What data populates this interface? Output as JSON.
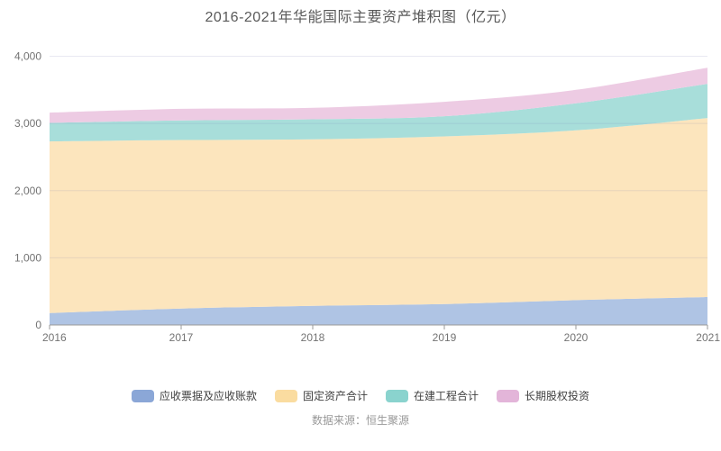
{
  "title": "2016-2021年华能国际主要资产堆积图（亿元）",
  "source": "数据来源：恒生聚源",
  "chart_data": {
    "type": "area",
    "stacked": true,
    "title": "2016-2021年华能国际主要资产堆积图（亿元）",
    "xlabel": "",
    "ylabel": "",
    "x": [
      "2016",
      "2017",
      "2018",
      "2019",
      "2020",
      "2021"
    ],
    "series": [
      {
        "name": "应收票据及应收账款",
        "legend_color": "#8BA7D7",
        "area_color": "#AFC4E4",
        "values": [
          178,
          245,
          285,
          312,
          370,
          415
        ]
      },
      {
        "name": "固定资产合计",
        "legend_color": "#FADCA0",
        "area_color": "#FCE5BD",
        "values": [
          2554,
          2508,
          2478,
          2495,
          2527,
          2665
        ]
      },
      {
        "name": "在建工程合计",
        "legend_color": "#8AD3CE",
        "area_color": "#A8DEDA",
        "values": [
          276,
          292,
          299,
          300,
          402,
          510
        ]
      },
      {
        "name": "长期股权投资",
        "legend_color": "#E3B5D9",
        "area_color": "#EDCBE3",
        "values": [
          153,
          173,
          170,
          215,
          201,
          240
        ]
      }
    ],
    "ylim": [
      0,
      4000
    ],
    "ytick_step": 1000,
    "ytick_labels": [
      "0",
      "1,000",
      "2,000",
      "3,000",
      "4,000"
    ],
    "grid": true,
    "legend_position": "bottom",
    "colors": {
      "axis_line": "#999999",
      "tick_label": "#737373",
      "gridline": "rgba(120,120,175,0.16)",
      "title_text": "#595959",
      "source_text": "#999999"
    }
  }
}
